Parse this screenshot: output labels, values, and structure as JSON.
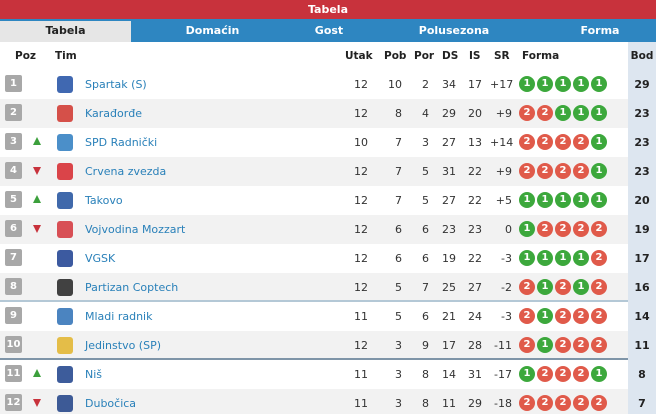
{
  "title": "Tabela",
  "tabs": [
    {
      "label": "Tabela",
      "active": true
    },
    {
      "label": "Domaćin",
      "active": false
    },
    {
      "label": "Gost",
      "active": false
    },
    {
      "label": "Polusezona",
      "active": false
    },
    {
      "label": "Forma",
      "active": false
    }
  ],
  "columns": {
    "poz": "Poz",
    "tim": "Tim",
    "utak": "Utak",
    "pob": "Pob",
    "por": "Por",
    "ds": "DS",
    "is": "IS",
    "sr": "SR",
    "forma": "Forma",
    "bod": "Bod"
  },
  "colors": {
    "title_bar": "#c8323c",
    "tab_bar": "#2e86c1",
    "win": "#3ca83c",
    "loss": "#e05a4a",
    "team_link": "#2980b9"
  },
  "rows": [
    {
      "pos": "1",
      "trend": "",
      "team": "Spartak (S)",
      "utak": "12",
      "pob": "10",
      "por": "2",
      "ds": "34",
      "is": "17",
      "sr": "+17",
      "form": [
        "1",
        "1",
        "1",
        "1",
        "1"
      ],
      "bod": "29",
      "logo": "spartak-logo",
      "logo_color": "#1f4ea3"
    },
    {
      "pos": "2",
      "trend": "",
      "team": "Karađorđe",
      "utak": "12",
      "pob": "8",
      "por": "4",
      "ds": "29",
      "is": "20",
      "sr": "+9",
      "form": [
        "2",
        "2",
        "1",
        "1",
        "1"
      ],
      "bod": "23",
      "logo": "karadjordje-logo",
      "logo_color": "#d0342c"
    },
    {
      "pos": "3",
      "trend": "up",
      "team": "SPD Radnički",
      "utak": "10",
      "pob": "7",
      "por": "3",
      "ds": "27",
      "is": "13",
      "sr": "+14",
      "form": [
        "2",
        "2",
        "2",
        "2",
        "1"
      ],
      "bod": "23",
      "logo": "spd-radnicki-logo",
      "logo_color": "#2b7bc0"
    },
    {
      "pos": "4",
      "trend": "down",
      "team": "Crvena zvezda",
      "utak": "12",
      "pob": "7",
      "por": "5",
      "ds": "31",
      "is": "22",
      "sr": "+9",
      "form": [
        "2",
        "2",
        "2",
        "2",
        "1"
      ],
      "bod": "23",
      "logo": "crvena-zvezda-logo",
      "logo_color": "#d6262c"
    },
    {
      "pos": "5",
      "trend": "up",
      "team": "Takovo",
      "utak": "12",
      "pob": "7",
      "por": "5",
      "ds": "27",
      "is": "22",
      "sr": "+5",
      "form": [
        "1",
        "1",
        "1",
        "1",
        "1"
      ],
      "bod": "20",
      "logo": "takovo-logo",
      "logo_color": "#1e4f9c"
    },
    {
      "pos": "6",
      "trend": "down",
      "team": "Vojvodina Mozzart",
      "utak": "12",
      "pob": "6",
      "por": "6",
      "ds": "23",
      "is": "23",
      "sr": "0",
      "form": [
        "1",
        "2",
        "2",
        "2",
        "2"
      ],
      "bod": "19",
      "logo": "vojvodina-logo",
      "logo_color": "#d4333a"
    },
    {
      "pos": "7",
      "trend": "",
      "team": "VGSK",
      "utak": "12",
      "pob": "6",
      "por": "6",
      "ds": "19",
      "is": "22",
      "sr": "-3",
      "form": [
        "1",
        "1",
        "1",
        "1",
        "2"
      ],
      "bod": "17",
      "logo": "vgsk-logo",
      "logo_color": "#1a3d8f"
    },
    {
      "pos": "8",
      "trend": "",
      "team": "Partizan Coptech",
      "utak": "12",
      "pob": "5",
      "por": "7",
      "ds": "25",
      "is": "27",
      "sr": "-2",
      "form": [
        "2",
        "1",
        "2",
        "1",
        "2"
      ],
      "bod": "16",
      "logo": "partizan-logo",
      "logo_color": "#222222"
    },
    {
      "pos": "9",
      "trend": "",
      "team": "Mladi radnik",
      "utak": "11",
      "pob": "5",
      "por": "6",
      "ds": "21",
      "is": "24",
      "sr": "-3",
      "form": [
        "2",
        "1",
        "2",
        "2",
        "2"
      ],
      "bod": "14",
      "logo": "mladi-radnik-logo",
      "logo_color": "#2c6fb5"
    },
    {
      "pos": "10",
      "trend": "",
      "team": "Jedinstvo (SP)",
      "utak": "12",
      "pob": "3",
      "por": "9",
      "ds": "17",
      "is": "28",
      "sr": "-11",
      "form": [
        "2",
        "1",
        "2",
        "2",
        "2"
      ],
      "bod": "11",
      "logo": "jedinstvo-logo",
      "logo_color": "#e2b42a"
    },
    {
      "pos": "11",
      "trend": "up",
      "team": "Niš",
      "utak": "11",
      "pob": "3",
      "por": "8",
      "ds": "14",
      "is": "31",
      "sr": "-17",
      "form": [
        "1",
        "2",
        "2",
        "2",
        "1"
      ],
      "bod": "8",
      "logo": "nis-logo",
      "logo_color": "#1b3f8a"
    },
    {
      "pos": "12",
      "trend": "down",
      "team": "Dubočica",
      "utak": "11",
      "pob": "3",
      "por": "8",
      "ds": "11",
      "is": "29",
      "sr": "-18",
      "form": [
        "2",
        "2",
        "2",
        "2",
        "2"
      ],
      "bod": "7",
      "logo": "dubocica-logo",
      "logo_color": "#1d3f86"
    }
  ]
}
